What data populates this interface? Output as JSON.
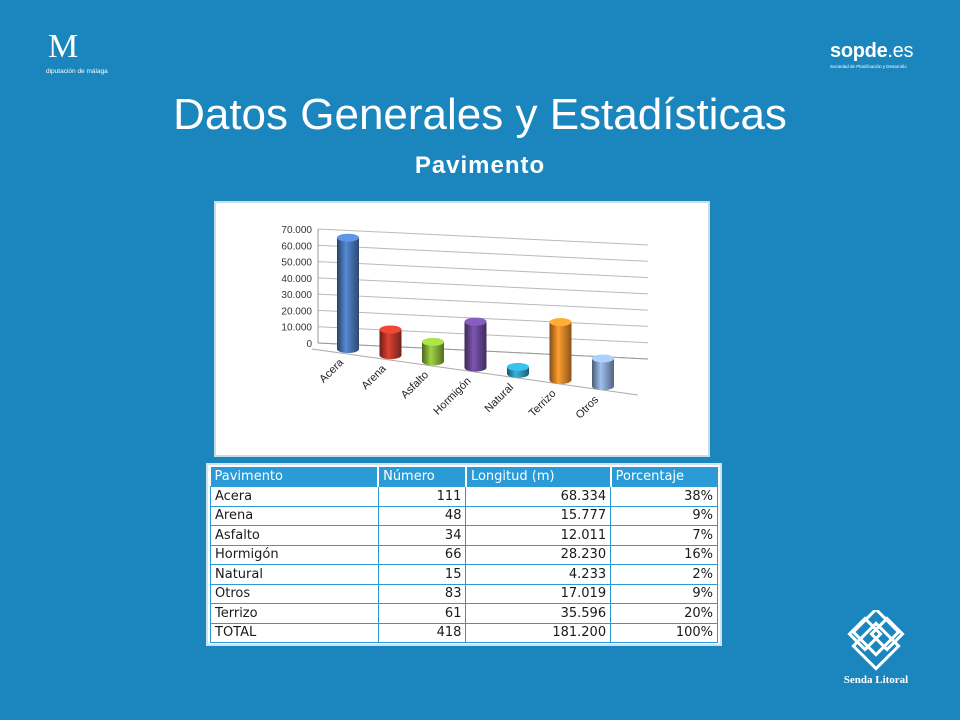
{
  "logos": {
    "diputacion": {
      "mark": "M",
      "text": "diputación de málaga"
    },
    "sopde": {
      "name": "sopde",
      "tld": ".es",
      "tagline": "Sociedad de Planificación y Desarrollo"
    },
    "senda": {
      "text": "Senda Litoral"
    }
  },
  "header": {
    "title": "Datos Generales y Estadísticas",
    "subtitle": "Pavimento"
  },
  "chart_data": {
    "type": "bar",
    "style": "3d-cylinder",
    "categories": [
      "Acera",
      "Arena",
      "Asfalto",
      "Hormigón",
      "Natural",
      "Terrizo",
      "Otros"
    ],
    "values": [
      68334,
      15777,
      12011,
      28230,
      4233,
      35596,
      17019
    ],
    "colors": [
      "#4a78b8",
      "#c0392b",
      "#8ab83a",
      "#6d4a9a",
      "#2f9cc0",
      "#e88a2a",
      "#8aa6d0"
    ],
    "ylim": [
      0,
      70000
    ],
    "yticks": [
      "0",
      "10.000",
      "20.000",
      "30.000",
      "40.000",
      "50.000",
      "60.000",
      "70.000"
    ],
    "grid": true,
    "title": "",
    "xlabel": "",
    "ylabel": ""
  },
  "table": {
    "headers": [
      "Pavimento",
      "Número",
      "Longitud (m)",
      "Porcentaje"
    ],
    "rows": [
      [
        "Acera",
        "111",
        "68.334",
        "38%"
      ],
      [
        "Arena",
        "48",
        "15.777",
        "9%"
      ],
      [
        "Asfalto",
        "34",
        "12.011",
        "7%"
      ],
      [
        "Hormigón",
        "66",
        "28.230",
        "16%"
      ],
      [
        "Natural",
        "15",
        "4.233",
        "2%"
      ],
      [
        "Otros",
        "83",
        "17.019",
        "9%"
      ],
      [
        "Terrizo",
        "61",
        "35.596",
        "20%"
      ],
      [
        "TOTAL",
        "418",
        "181.200",
        "100%"
      ]
    ]
  }
}
